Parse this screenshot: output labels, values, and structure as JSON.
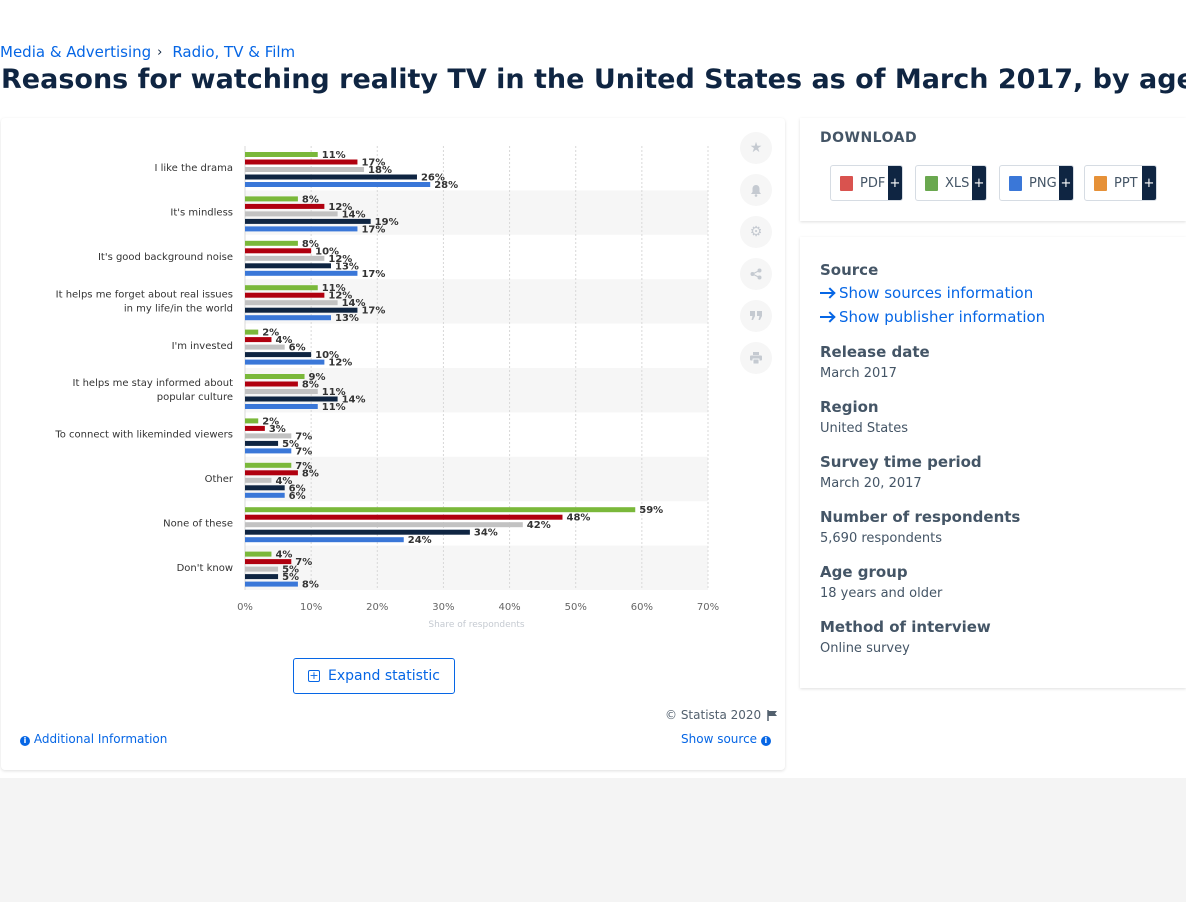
{
  "breadcrumb": {
    "item1": "Media & Advertising",
    "sep": "›",
    "item2": "Radio, TV & Film"
  },
  "page_title": "Reasons for watching reality TV in the United States as of March 2017, by age",
  "chart_card": {
    "expand_label": "Expand statistic",
    "copyright": "© Statista 2020",
    "additional_info": "Additional Information",
    "show_source": "Show source",
    "tools": [
      "star-icon",
      "bell-icon",
      "gear-icon",
      "share-icon",
      "quote-icon",
      "print-icon"
    ]
  },
  "chart_data": {
    "type": "bar",
    "orientation": "horizontal",
    "categories": [
      "I like the drama",
      "It's mindless",
      "It's good background noise",
      "It helps me forget about real issues in my life/in the world",
      "I'm invested",
      "It helps me stay informed about popular culture",
      "To connect with likeminded viewers",
      "Other",
      "None of these",
      "Don't know"
    ],
    "series": [
      {
        "color": "#7ab83a",
        "values": [
          11,
          8,
          8,
          11,
          2,
          9,
          2,
          7,
          59,
          4
        ]
      },
      {
        "color": "#b0000f",
        "values": [
          17,
          12,
          10,
          12,
          4,
          8,
          3,
          8,
          48,
          7
        ]
      },
      {
        "color": "#c2c2c2",
        "values": [
          18,
          14,
          12,
          14,
          6,
          11,
          7,
          4,
          42,
          5
        ]
      },
      {
        "color": "#0f2542",
        "values": [
          26,
          19,
          13,
          17,
          10,
          14,
          5,
          6,
          34,
          5
        ]
      },
      {
        "color": "#3a77d8",
        "values": [
          28,
          17,
          17,
          13,
          12,
          11,
          7,
          6,
          24,
          8
        ]
      }
    ],
    "value_suffix": "%",
    "xlim": [
      0,
      70
    ],
    "xticks": [
      "0%",
      "10%",
      "20%",
      "30%",
      "40%",
      "50%",
      "60%",
      "70%"
    ],
    "xlabel": "Share of respondents",
    "grid": true
  },
  "download": {
    "title": "DOWNLOAD",
    "buttons": [
      {
        "label": "PDF",
        "plus": "+",
        "icon": "pdf-icon",
        "color": "#d9534f"
      },
      {
        "label": "XLS",
        "plus": "+",
        "icon": "xls-icon",
        "color": "#6aa84f"
      },
      {
        "label": "PNG",
        "plus": "+",
        "icon": "png-icon",
        "color": "#3a77d8"
      },
      {
        "label": "PPT",
        "plus": "+",
        "icon": "ppt-icon",
        "color": "#e69138"
      }
    ]
  },
  "meta": {
    "source_h": "Source",
    "sources_link": "Show sources information",
    "publisher_link": "Show publisher information",
    "release_h": "Release date",
    "release_v": "March 2017",
    "region_h": "Region",
    "region_v": "United States",
    "survey_h": "Survey time period",
    "survey_v": "March 20, 2017",
    "respondents_h": "Number of respondents",
    "respondents_v": "5,690 respondents",
    "age_h": "Age group",
    "age_v": "18 years and older",
    "method_h": "Method of interview",
    "method_v": "Online survey"
  }
}
